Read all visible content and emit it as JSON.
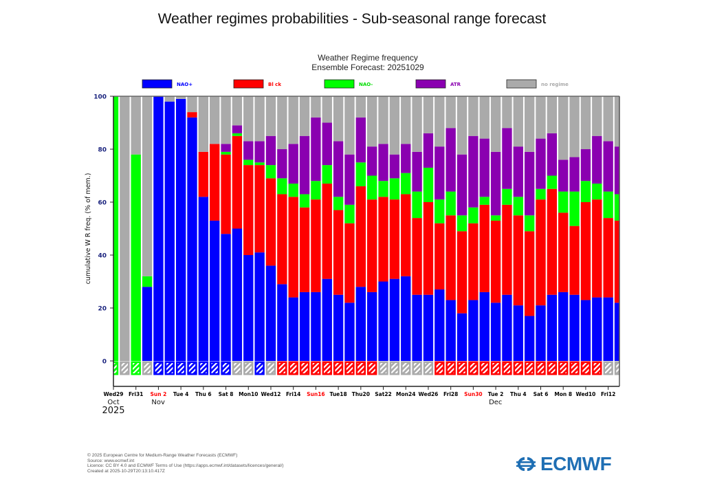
{
  "page": {
    "title": "Weather regimes probabilities - Sub-seasonal range forecast"
  },
  "footer": {
    "lines": [
      "© 2025 European Centre for Medium-Range Weather Forecasts (ECMWF)",
      "Source: www.ecmwf.int",
      "Licence: CC BY 4.0 and ECMWF Terms of Use (https://apps.ecmwf.int/datasets/licences/general/)",
      "Created at 2025-10-29T20:13:10.417Z"
    ],
    "logo_text": "ECMWF"
  },
  "chart_data": {
    "type": "bar",
    "stacked": true,
    "title": "Weather Regime frequency",
    "subtitle": "Ensemble Forecast: 20251029",
    "xlabel": "",
    "ylabel": "cumulative W R freq. (% of mem.)",
    "ylim": [
      0,
      100
    ],
    "yticks": [
      0,
      20,
      40,
      60,
      80,
      100
    ],
    "legend": {
      "placement": "top",
      "entries": [
        {
          "name": "NAO+",
          "color": "#0000ff",
          "text_color": "#0000ff"
        },
        {
          "name": "Block",
          "color": "#ff0000",
          "text_color": "#ff0000",
          "label": "Bl ck"
        },
        {
          "name": "NAO-",
          "color": "#00ff00",
          "text_color": "#00dd00"
        },
        {
          "name": "ATR",
          "color": "#8a00b0",
          "text_color": "#8a00b0"
        },
        {
          "name": "no regime",
          "color": "#aaaaaa",
          "text_color": "#aaaaaa"
        }
      ]
    },
    "legend_labels": [
      "NAO+",
      "Bl ck",
      "NAO-",
      "ATR",
      "no regime"
    ],
    "categories": [
      "Wed29",
      "Thu30",
      "Fri31",
      "Sat1",
      "Sun2",
      "Mon3",
      "Tue4",
      "Wed5",
      "Thu6",
      "Fri7",
      "Sat8",
      "Sun9",
      "Mon10",
      "Tue11",
      "Wed12",
      "Thu13",
      "Fri14",
      "Sat15",
      "Sun16",
      "Mon17",
      "Tue18",
      "Wed19",
      "Thu20",
      "Fri21",
      "Sat22",
      "Sun23",
      "Mon24",
      "Tue25",
      "Wed26",
      "Thu27",
      "Fri28",
      "Sat29",
      "Sun30",
      "Mon1",
      "Tue2",
      "Wed3",
      "Thu4",
      "Fri5",
      "Sat6",
      "Sun7",
      "Mon8",
      "Tue9",
      "Wed10",
      "Thu11",
      "Fri12",
      "Sat13"
    ],
    "x_tick_labels": [
      {
        "index": 0,
        "label": "Wed29",
        "color": "#000000"
      },
      {
        "index": 2,
        "label": "Fri31",
        "color": "#000000"
      },
      {
        "index": 4,
        "label": "Sun 2",
        "color": "#ff0000"
      },
      {
        "index": 6,
        "label": "Tue 4",
        "color": "#000000"
      },
      {
        "index": 8,
        "label": "Thu 6",
        "color": "#000000"
      },
      {
        "index": 10,
        "label": "Sat 8",
        "color": "#000000"
      },
      {
        "index": 12,
        "label": "Mon10",
        "color": "#000000"
      },
      {
        "index": 14,
        "label": "Wed12",
        "color": "#000000"
      },
      {
        "index": 16,
        "label": "Fri14",
        "color": "#000000"
      },
      {
        "index": 18,
        "label": "Sun16",
        "color": "#ff0000"
      },
      {
        "index": 20,
        "label": "Tue18",
        "color": "#000000"
      },
      {
        "index": 22,
        "label": "Thu20",
        "color": "#000000"
      },
      {
        "index": 24,
        "label": "Sat22",
        "color": "#000000"
      },
      {
        "index": 26,
        "label": "Mon24",
        "color": "#000000"
      },
      {
        "index": 28,
        "label": "Wed26",
        "color": "#000000"
      },
      {
        "index": 30,
        "label": "Fri28",
        "color": "#000000"
      },
      {
        "index": 32,
        "label": "Sun30",
        "color": "#ff0000"
      },
      {
        "index": 34,
        "label": "Tue 2",
        "color": "#000000"
      },
      {
        "index": 36,
        "label": "Thu 4",
        "color": "#000000"
      },
      {
        "index": 38,
        "label": "Sat 6",
        "color": "#000000"
      },
      {
        "index": 40,
        "label": "Mon 8",
        "color": "#000000"
      },
      {
        "index": 42,
        "label": "Wed10",
        "color": "#000000"
      },
      {
        "index": 44,
        "label": "Fri12",
        "color": "#000000"
      }
    ],
    "month_labels": [
      {
        "index": 0,
        "label": "Oct",
        "year": "2025"
      },
      {
        "index": 4,
        "label": "Nov"
      },
      {
        "index": 34,
        "label": "Dec"
      }
    ],
    "series": [
      {
        "name": "NAO+",
        "color": "#0000ff",
        "values": [
          0,
          0,
          0,
          28,
          100,
          98,
          99,
          92,
          62,
          53,
          48,
          50,
          40,
          41,
          36,
          29,
          24,
          26,
          26,
          31,
          25,
          22,
          28,
          26,
          30,
          31,
          32,
          25,
          25,
          27,
          23,
          18,
          23,
          26,
          22,
          25,
          21,
          17,
          21,
          25,
          26,
          25,
          23,
          24,
          24,
          22
        ]
      },
      {
        "name": "Block",
        "color": "#ff0000",
        "values": [
          0,
          0,
          0,
          0,
          0,
          0,
          0,
          2,
          17,
          29,
          30,
          35,
          34,
          33,
          33,
          34,
          38,
          32,
          35,
          36,
          32,
          30,
          38,
          35,
          32,
          30,
          31,
          29,
          35,
          25,
          32,
          31,
          29,
          33,
          31,
          34,
          34,
          32,
          40,
          40,
          30,
          26,
          37,
          37,
          30,
          31
        ]
      },
      {
        "name": "NAO-",
        "color": "#00ff00",
        "values": [
          100,
          0,
          78,
          4,
          0,
          0,
          0,
          0,
          0,
          0,
          1,
          1,
          2,
          1,
          5,
          6,
          5,
          5,
          7,
          7,
          5,
          7,
          9,
          9,
          6,
          8,
          8,
          10,
          13,
          9,
          9,
          6,
          6,
          3,
          2,
          6,
          7,
          6,
          4,
          5,
          8,
          13,
          8,
          6,
          10,
          10
        ]
      },
      {
        "name": "ATR",
        "color": "#8a00b0",
        "values": [
          0,
          0,
          0,
          0,
          0,
          0,
          0,
          0,
          0,
          0,
          3,
          3,
          7,
          8,
          11,
          11,
          15,
          22,
          24,
          16,
          21,
          19,
          17,
          11,
          14,
          9,
          11,
          15,
          13,
          20,
          24,
          23,
          27,
          22,
          24,
          23,
          19,
          24,
          19,
          16,
          12,
          13,
          12,
          18,
          19,
          18
        ]
      },
      {
        "name": "no regime",
        "color": "#aaaaaa",
        "values": [
          0,
          100,
          22,
          68,
          0,
          2,
          1,
          6,
          21,
          18,
          18,
          11,
          17,
          17,
          15,
          20,
          18,
          15,
          8,
          10,
          17,
          22,
          8,
          19,
          18,
          22,
          18,
          21,
          14,
          19,
          12,
          22,
          15,
          16,
          21,
          12,
          19,
          21,
          16,
          14,
          24,
          23,
          20,
          15,
          17,
          19
        ]
      }
    ],
    "dominant_regime_strip": [
      "NAO-",
      "no regime",
      "NAO-",
      "no regime",
      "NAO+",
      "NAO+",
      "NAO+",
      "NAO+",
      "NAO+",
      "NAO+",
      "NAO+",
      "no regime",
      "no regime",
      "NAO+",
      "no regime",
      "Block",
      "Block",
      "Block",
      "Block",
      "Block",
      "Block",
      "Block",
      "Block",
      "Block",
      "no regime",
      "no regime",
      "no regime",
      "no regime",
      "no regime",
      "Block",
      "Block",
      "Block",
      "Block",
      "Block",
      "Block",
      "Block",
      "Block",
      "Block",
      "Block",
      "Block",
      "Block",
      "Block",
      "Block",
      "Block",
      "no regime",
      "no regime"
    ],
    "grid": false
  }
}
